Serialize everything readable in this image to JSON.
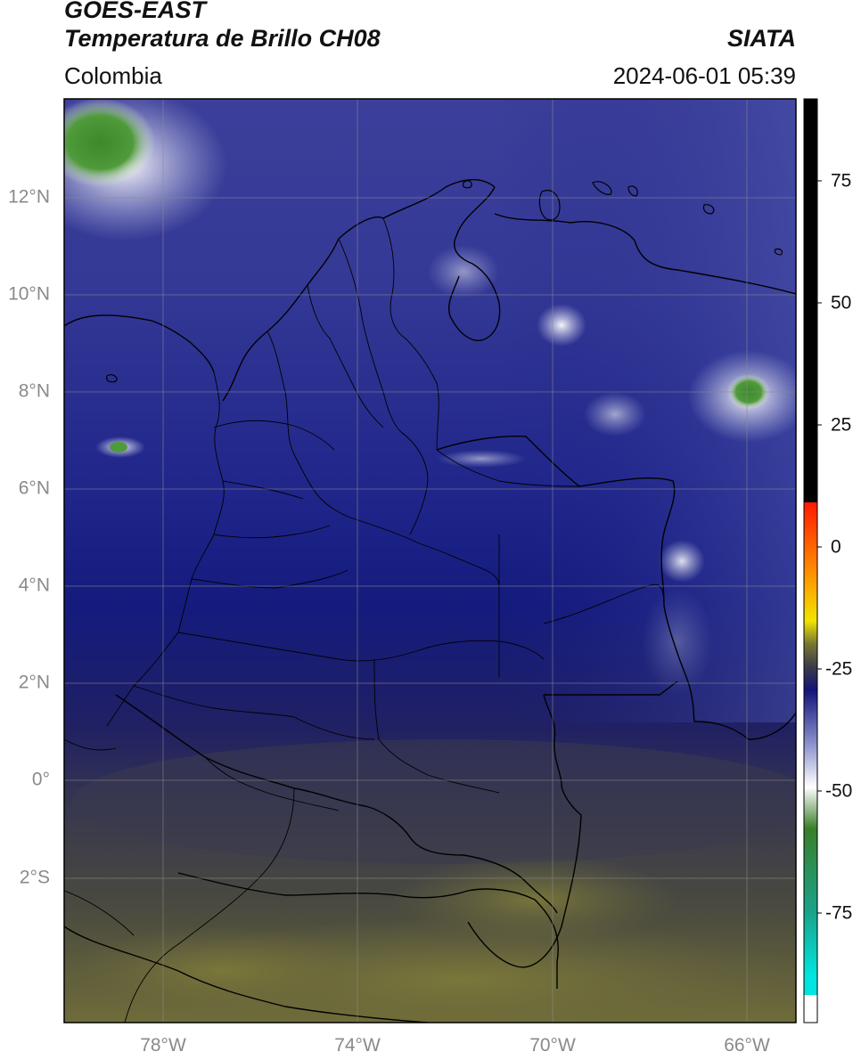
{
  "header": {
    "satellite": "GOES-EAST",
    "product": "Temperatura de Brillo CH08",
    "organization": "SIATA",
    "region": "Colombia",
    "datetime": "2024-06-01 05:39"
  },
  "map": {
    "lat_labels": [
      "12°N",
      "10°N",
      "8°N",
      "6°N",
      "4°N",
      "2°N",
      "0°",
      "2°S"
    ],
    "lon_labels": [
      "78°W",
      "74°W",
      "70°W",
      "66°W"
    ]
  },
  "colorbar": {
    "tick_labels": [
      "75",
      "50",
      "25",
      "0",
      "-25",
      "-50",
      "-75"
    ],
    "colors": {
      "black": "#000000",
      "red": "#ff2a00",
      "orange": "#ff8c00",
      "yellow": "#f2e400",
      "olive": "#777733",
      "dark_gray": "#3b3b4a",
      "navy": "#14147a",
      "light_blue": "#8f95cf",
      "white": "#ffffff",
      "green": "#3a7f2a",
      "teal": "#1aa38a",
      "cyan": "#00e5e0"
    }
  }
}
